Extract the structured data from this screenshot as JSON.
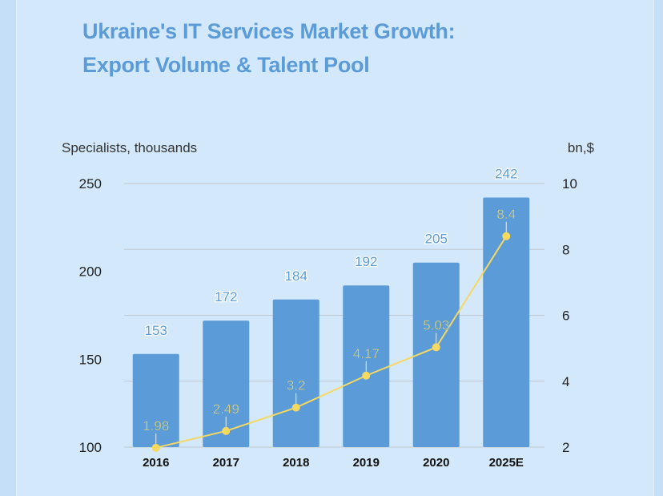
{
  "title_line1": "Ukraine's IT Services Market Growth:",
  "title_line2": "Export Volume & Talent Pool",
  "chart_data": {
    "type": "bar+line",
    "title": "Ukraine's IT Services Market Growth: Export Volume & Talent Pool",
    "categories": [
      "2016",
      "2017",
      "2018",
      "2019",
      "2020",
      "2025E"
    ],
    "series": [
      {
        "name": "Specialists, thousands",
        "type": "bar",
        "axis": "left",
        "values": [
          153,
          172,
          184,
          192,
          205,
          242
        ],
        "color": "#5b9bd8"
      },
      {
        "name": "Export volume, bn $",
        "type": "line",
        "axis": "right",
        "values": [
          1.98,
          2.49,
          3.2,
          4.17,
          5.03,
          8.4
        ],
        "color": "#f5d960"
      }
    ],
    "ylabel_left": "Specialists, thousands",
    "ylabel_right": "bn,$",
    "ylim_left": [
      100,
      250
    ],
    "yticks_left": [
      100,
      150,
      200,
      250
    ],
    "ylim_right": [
      2,
      10
    ],
    "yticks_right": [
      2,
      4,
      6,
      8,
      10
    ],
    "grid": true
  }
}
